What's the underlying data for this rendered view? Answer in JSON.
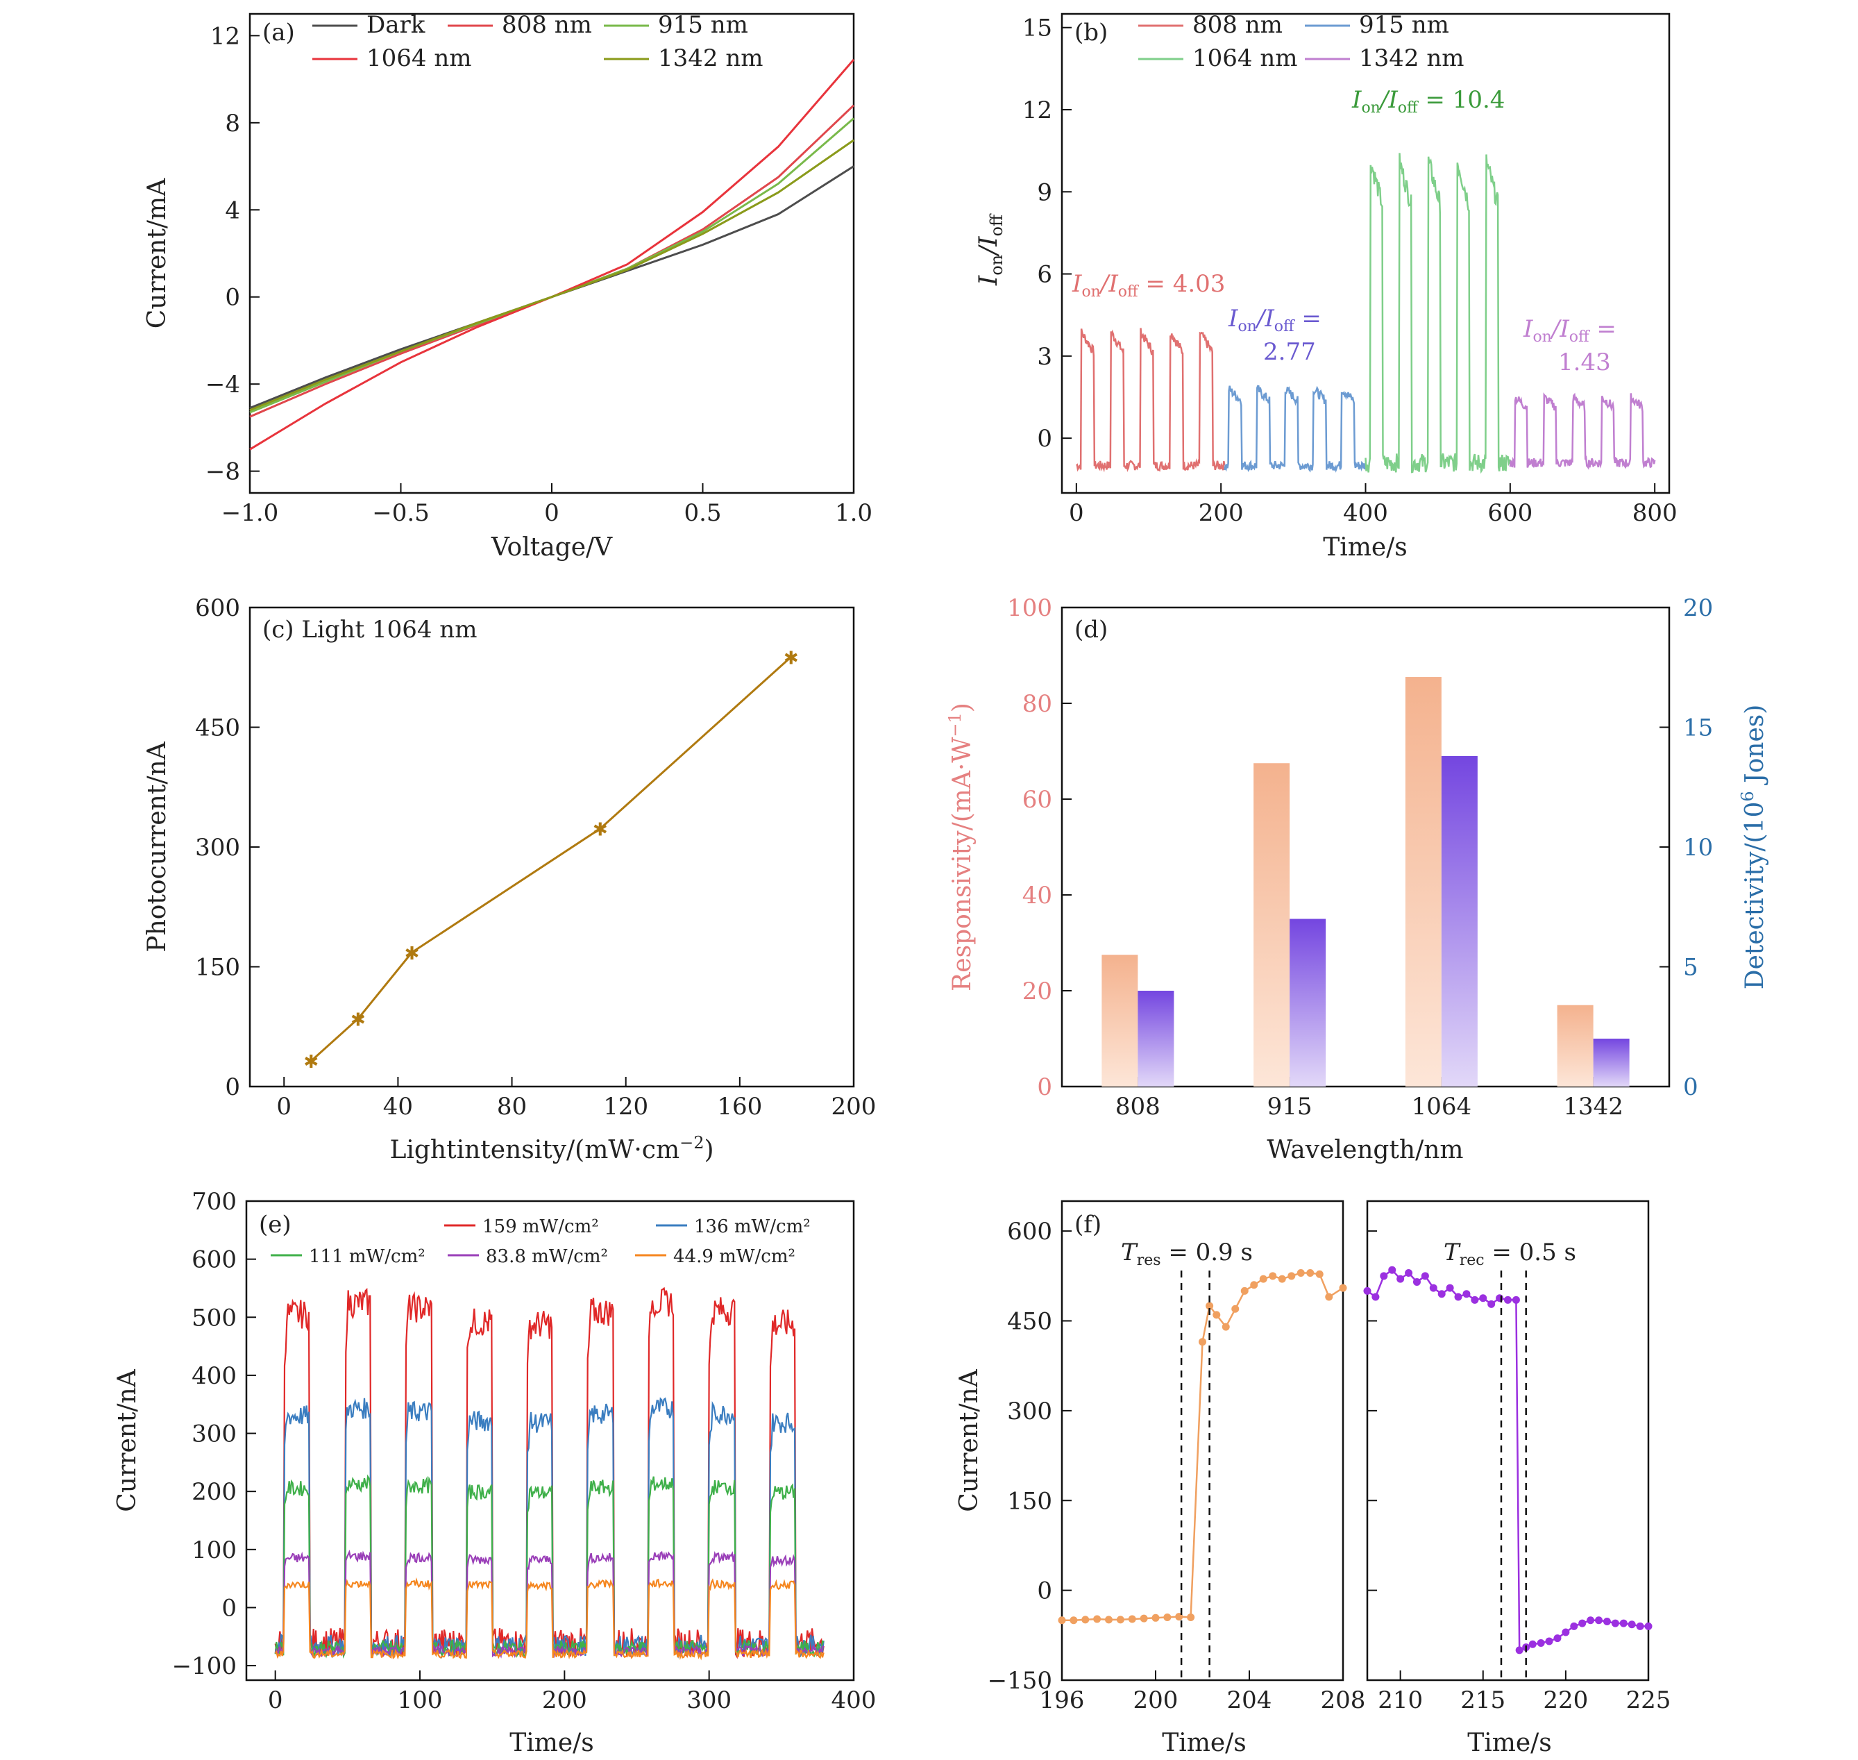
{
  "colors": {
    "dark": "#4d4d4d",
    "nm808": "#e0474c",
    "nm915": "#4a8ad0",
    "nm1064": "#e8343c",
    "nm1342": "#8a9a1a",
    "green915": "#79b94a",
    "b808": "#e07070",
    "b915": "#6c9bd2",
    "b1064": "#7fcf8a",
    "b1342": "#c07fd0",
    "brown": "#b07a10",
    "respBar": "#f4b28e",
    "detBar": "#7446e0",
    "respAxis": "#e58080",
    "detAxis": "#2b6ea8",
    "e159": "#e02828",
    "e136": "#3a7dc0",
    "e111": "#3fb04a",
    "e838": "#9a3fb8",
    "e449": "#f5861f",
    "fOrange": "#f0a060",
    "fPurple": "#9b30e0"
  },
  "chart_data": [
    {
      "panel": "(a)",
      "type": "line",
      "xlabel": "Voltage/V",
      "ylabel": "Current/mA",
      "xlim": [
        -1.0,
        1.0
      ],
      "ylim": [
        -9,
        13
      ],
      "xticks": [
        "−1.0",
        "−0.5",
        "0",
        "0.5",
        "1.0"
      ],
      "yticks": [
        "−8",
        "−4",
        "0",
        "4",
        "8",
        "12"
      ],
      "legend": [
        "Dark",
        "808 nm",
        "915 nm",
        "1064 nm",
        "1342 nm"
      ],
      "series": [
        {
          "name": "Dark",
          "x": [
            -1,
            -0.75,
            -0.5,
            -0.25,
            0,
            0.25,
            0.5,
            0.75,
            1
          ],
          "y": [
            -5.1,
            -3.7,
            -2.4,
            -1.2,
            0,
            1.2,
            2.4,
            3.8,
            6.0
          ]
        },
        {
          "name": "808 nm",
          "x": [
            -1,
            -0.75,
            -0.5,
            -0.25,
            0,
            0.25,
            0.5,
            0.75,
            1
          ],
          "y": [
            -5.5,
            -4.0,
            -2.6,
            -1.3,
            0,
            1.3,
            3.1,
            5.5,
            8.8
          ]
        },
        {
          "name": "915 nm",
          "x": [
            -1,
            -0.75,
            -0.5,
            -0.25,
            0,
            0.25,
            0.5,
            0.75,
            1
          ],
          "y": [
            -5.3,
            -3.9,
            -2.5,
            -1.25,
            0,
            1.3,
            3.0,
            5.2,
            8.2
          ]
        },
        {
          "name": "1064 nm",
          "x": [
            -1,
            -0.75,
            -0.5,
            -0.25,
            0,
            0.25,
            0.5,
            0.75,
            1
          ],
          "y": [
            -7.0,
            -4.9,
            -3.0,
            -1.4,
            0,
            1.5,
            3.9,
            6.9,
            10.9
          ]
        },
        {
          "name": "1342 nm",
          "x": [
            -1,
            -0.75,
            -0.5,
            -0.25,
            0,
            0.25,
            0.5,
            0.75,
            1
          ],
          "y": [
            -5.2,
            -3.8,
            -2.5,
            -1.2,
            0,
            1.25,
            2.9,
            4.8,
            7.2
          ]
        }
      ]
    },
    {
      "panel": "(b)",
      "type": "line",
      "xlabel": "Time/s",
      "ylabel_main": "I",
      "ylabel_sub1": "on",
      "ylabel_mid": "/I",
      "ylabel_sub2": "off",
      "xlim": [
        -20,
        820
      ],
      "ylim": [
        -2,
        15.5
      ],
      "xticks": [
        "0",
        "200",
        "400",
        "600",
        "800"
      ],
      "yticks": [
        "0",
        "3",
        "6",
        "9",
        "12",
        "15"
      ],
      "legend": [
        "808 nm",
        "915 nm",
        "1064 nm",
        "1342 nm"
      ],
      "series": [
        {
          "name": "808 nm",
          "t_start": 0,
          "t_end": 205,
          "on": 3.9,
          "off": -1.0,
          "cycles": 5
        },
        {
          "name": "915 nm",
          "t_start": 205,
          "t_end": 400,
          "on": 1.8,
          "off": -1.0,
          "cycles": 5
        },
        {
          "name": "1064 nm",
          "t_start": 400,
          "t_end": 600,
          "on": 10.2,
          "off": -0.9,
          "cycles": 5
        },
        {
          "name": "1342 nm",
          "t_start": 600,
          "t_end": 800,
          "on": 1.5,
          "off": -0.9,
          "cycles": 5
        }
      ],
      "annotations": [
        {
          "label": "= 4.03",
          "value": "4.03"
        },
        {
          "label": "= 2.77",
          "value": "2.77"
        },
        {
          "label": "= 10.4",
          "value": "10.4"
        },
        {
          "label": "= 1.43",
          "value": "1.43"
        }
      ]
    },
    {
      "panel": "(c)",
      "type": "line",
      "title": "Light 1064 nm",
      "xlabel": "Lightintensity/(mW·cm",
      "xlabel_sup": "−2",
      "ylabel": "Photocurrent/nA",
      "xlim": [
        -12,
        200
      ],
      "ylim": [
        0,
        600
      ],
      "xticks": [
        "0",
        "40",
        "80",
        "120",
        "160",
        "200"
      ],
      "yticks": [
        "0",
        "150",
        "300",
        "450",
        "600"
      ],
      "x": [
        9.5,
        26,
        44.9,
        111,
        178
      ],
      "y": [
        32,
        85,
        168,
        323,
        538
      ]
    },
    {
      "panel": "(d)",
      "type": "bar",
      "xlabel": "Wavelength/nm",
      "ylabel_left": "Responsivity/(mA·W",
      "ylabel_left_sup": "−1",
      "ylabel_right": "Detectivity/(10",
      "ylabel_right_sup": "6",
      "ylabel_right_tail": " Jones)",
      "categories": [
        "808",
        "915",
        "1064",
        "1342"
      ],
      "ylim_left": [
        0,
        100
      ],
      "ylim_right": [
        0,
        20
      ],
      "yticks_left": [
        "0",
        "20",
        "40",
        "60",
        "80",
        "100"
      ],
      "yticks_right": [
        "0",
        "5",
        "10",
        "15",
        "20"
      ],
      "series": [
        {
          "name": "Responsivity",
          "values": [
            27.5,
            67.5,
            85.5,
            17
          ]
        },
        {
          "name": "Detectivity",
          "values": [
            4.0,
            7.0,
            13.8,
            2.0
          ]
        }
      ]
    },
    {
      "panel": "(e)",
      "type": "line",
      "xlabel": "Time/s",
      "ylabel": "Current/nA",
      "xlim": [
        -20,
        400
      ],
      "ylim": [
        -125,
        700
      ],
      "xticks": [
        "0",
        "100",
        "200",
        "300",
        "400"
      ],
      "yticks": [
        "−100",
        "0",
        "100",
        "200",
        "300",
        "400",
        "500",
        "600",
        "700"
      ],
      "legend": [
        "159 mW/cm²",
        "136 mW/cm²",
        "111 mW/cm²",
        "83.8 mW/cm²",
        "44.9 mW/cm²"
      ],
      "series": [
        {
          "name": "159 mW/cm²",
          "on": 505,
          "off": -60
        },
        {
          "name": "136 mW/cm²",
          "on": 330,
          "off": -65
        },
        {
          "name": "111 mW/cm²",
          "on": 205,
          "off": -70
        },
        {
          "name": "83.8 mW/cm²",
          "on": 85,
          "off": -75
        },
        {
          "name": "44.9 mW/cm²",
          "on": 40,
          "off": -80
        }
      ]
    },
    {
      "panel": "(f)",
      "type": "line",
      "xlabel": "Time/s",
      "ylabel": "Current/nA",
      "ylim": [
        -150,
        650
      ],
      "yticks": [
        "−150",
        "0",
        "150",
        "300",
        "450",
        "600"
      ],
      "left": {
        "xlim": [
          196,
          208
        ],
        "xticks": [
          "196",
          "200",
          "204",
          "208"
        ],
        "label": "= 0.9 s",
        "x": [
          196,
          196.5,
          197,
          197.5,
          198,
          198.5,
          199,
          199.5,
          200,
          200.5,
          201,
          201.5,
          202,
          202.3,
          202.6,
          203,
          203.4,
          203.8,
          204.2,
          204.6,
          205,
          205.4,
          205.8,
          206.2,
          206.6,
          207,
          207.4,
          208
        ],
        "y": [
          -50,
          -50,
          -49,
          -48,
          -49,
          -49,
          -48,
          -47,
          -46,
          -45,
          -44,
          -45,
          415,
          475,
          460,
          440,
          470,
          500,
          510,
          520,
          525,
          520,
          525,
          530,
          530,
          528,
          490,
          505
        ]
      },
      "right": {
        "xlim": [
          208,
          225
        ],
        "xticks": [
          "210",
          "215",
          "220",
          "225"
        ],
        "label": "= 0.5 s",
        "x": [
          208,
          208.5,
          209,
          209.5,
          210,
          210.5,
          211,
          211.5,
          212,
          212.5,
          213,
          213.5,
          214,
          214.5,
          215,
          215.5,
          216,
          216.5,
          217,
          217.2,
          217.6,
          218,
          218.5,
          219,
          219.5,
          220,
          220.5,
          221,
          221.5,
          222,
          222.5,
          223,
          223.5,
          224,
          224.5,
          225
        ],
        "y": [
          500,
          490,
          525,
          535,
          520,
          530,
          515,
          525,
          505,
          495,
          505,
          490,
          495,
          485,
          488,
          478,
          488,
          485,
          485,
          -100,
          -95,
          -90,
          -88,
          -85,
          -80,
          -70,
          -60,
          -55,
          -50,
          -50,
          -52,
          -55,
          -55,
          -57,
          -60,
          -60
        ]
      }
    }
  ]
}
